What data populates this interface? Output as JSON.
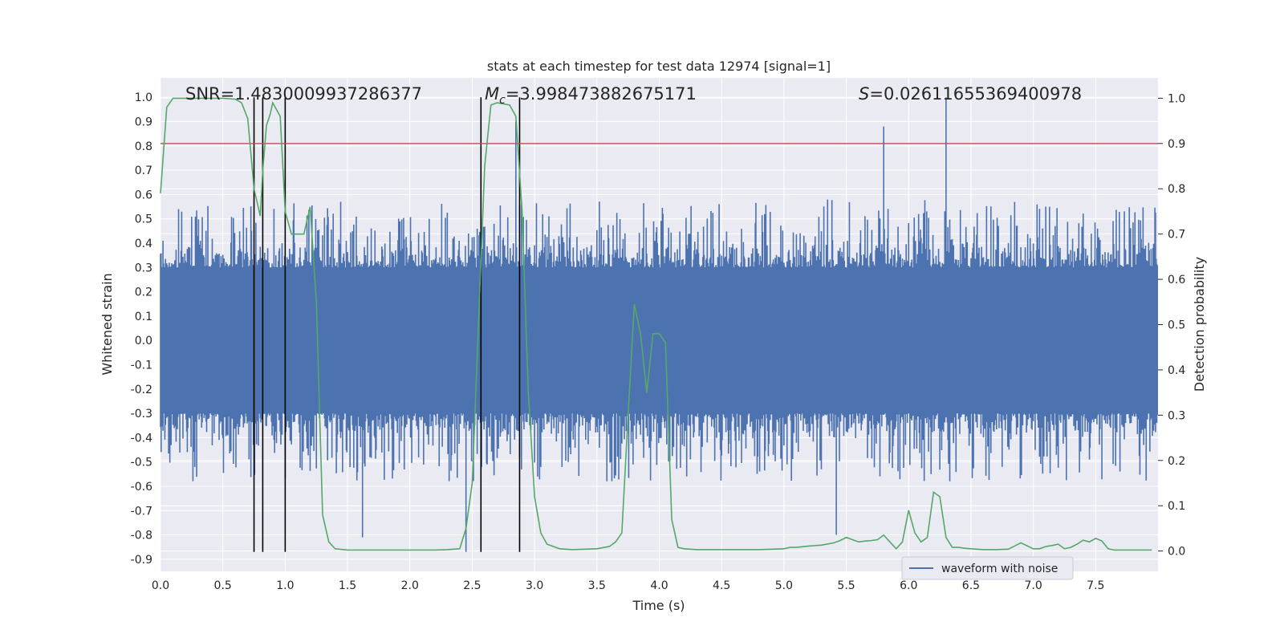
{
  "chart_data": {
    "type": "line",
    "title": "stats at each timestep for test data 12974 [signal=1]",
    "xlabel": "Time (s)",
    "ylabel": "Whitened strain",
    "y2label": "Detection probability",
    "xlim": [
      0.0,
      8.0
    ],
    "ylim": [
      -0.95,
      1.08
    ],
    "y2lim": [
      -0.045,
      1.045
    ],
    "x_ticks": [
      "0.0",
      "0.5",
      "1.0",
      "1.5",
      "2.0",
      "2.5",
      "3.0",
      "3.5",
      "4.0",
      "4.5",
      "5.0",
      "5.5",
      "6.0",
      "6.5",
      "7.0",
      "7.5"
    ],
    "y_ticks": [
      "1.0",
      "0.9",
      "0.8",
      "0.7",
      "0.6",
      "0.5",
      "0.4",
      "0.3",
      "0.2",
      "0.1",
      "0.0",
      "-0.1",
      "-0.2",
      "-0.3",
      "-0.4",
      "-0.5",
      "-0.6",
      "-0.7",
      "-0.8",
      "-0.9"
    ],
    "y2_ticks": [
      "1.0",
      "0.9",
      "0.8",
      "0.7",
      "0.6",
      "0.5",
      "0.4",
      "0.3",
      "0.2",
      "0.1",
      "0.0"
    ],
    "annotations": {
      "snr": "SNR=1.4830009937286377",
      "mc_symbol": "M",
      "mc_sub": "c",
      "mc_value": "=3.998473882675171",
      "s_symbol": "S",
      "s_value": "=0.02611655369400978"
    },
    "threshold": {
      "value": 0.9,
      "axis": "right",
      "color": "#c44e52"
    },
    "vertical_lines": [
      0.75,
      0.82,
      1.0,
      2.57,
      2.88
    ],
    "vertical_line_range": [
      -0.87,
      1.0
    ],
    "series": [
      {
        "name": "waveform with noise",
        "axis": "left",
        "color": "#4c72b0",
        "style": "noise",
        "band": [
          -0.3,
          0.3
        ],
        "spike_max": 0.5,
        "peaks": [
          [
            2.85,
            0.9
          ],
          [
            5.8,
            0.88
          ],
          [
            6.3,
            1.0
          ],
          [
            2.45,
            -0.87
          ],
          [
            1.62,
            -0.81
          ],
          [
            5.42,
            -0.8
          ]
        ]
      },
      {
        "name": "detection probability",
        "axis": "right",
        "color": "#55a868",
        "x": [
          0.0,
          0.05,
          0.1,
          0.2,
          0.3,
          0.4,
          0.5,
          0.6,
          0.65,
          0.7,
          0.75,
          0.8,
          0.82,
          0.85,
          0.88,
          0.9,
          0.93,
          0.96,
          1.0,
          1.05,
          1.1,
          1.15,
          1.2,
          1.25,
          1.3,
          1.35,
          1.4,
          1.5,
          1.6,
          1.8,
          2.0,
          2.2,
          2.3,
          2.4,
          2.45,
          2.5,
          2.55,
          2.6,
          2.65,
          2.7,
          2.8,
          2.85,
          2.9,
          2.95,
          3.0,
          3.05,
          3.1,
          3.2,
          3.3,
          3.5,
          3.6,
          3.65,
          3.7,
          3.75,
          3.8,
          3.85,
          3.9,
          3.95,
          4.0,
          4.05,
          4.1,
          4.15,
          4.2,
          4.3,
          4.4,
          4.6,
          4.8,
          5.0,
          5.05,
          5.1,
          5.2,
          5.3,
          5.4,
          5.45,
          5.5,
          5.55,
          5.6,
          5.65,
          5.7,
          5.75,
          5.8,
          5.85,
          5.9,
          5.95,
          6.0,
          6.05,
          6.1,
          6.15,
          6.2,
          6.25,
          6.3,
          6.35,
          6.4,
          6.45,
          6.5,
          6.6,
          6.7,
          6.8,
          6.9,
          7.0,
          7.05,
          7.1,
          7.15,
          7.2,
          7.25,
          7.3,
          7.35,
          7.4,
          7.45,
          7.5,
          7.55,
          7.6,
          7.65,
          7.7,
          7.75,
          7.8,
          7.85,
          7.9,
          7.95
        ],
        "values": [
          0.79,
          0.98,
          1.0,
          1.0,
          1.0,
          1.0,
          1.0,
          0.998,
          0.99,
          0.955,
          0.8,
          0.74,
          0.84,
          0.94,
          0.965,
          0.99,
          0.975,
          0.96,
          0.75,
          0.7,
          0.7,
          0.7,
          0.76,
          0.55,
          0.08,
          0.02,
          0.005,
          0.002,
          0.002,
          0.002,
          0.002,
          0.002,
          0.003,
          0.005,
          0.05,
          0.15,
          0.5,
          0.85,
          0.985,
          0.99,
          0.985,
          0.96,
          0.75,
          0.35,
          0.12,
          0.04,
          0.015,
          0.005,
          0.003,
          0.005,
          0.01,
          0.02,
          0.04,
          0.3,
          0.545,
          0.48,
          0.35,
          0.48,
          0.48,
          0.46,
          0.07,
          0.008,
          0.005,
          0.003,
          0.003,
          0.003,
          0.003,
          0.005,
          0.008,
          0.008,
          0.011,
          0.013,
          0.018,
          0.023,
          0.03,
          0.025,
          0.02,
          0.022,
          0.023,
          0.025,
          0.035,
          0.02,
          0.005,
          0.02,
          0.09,
          0.04,
          0.02,
          0.03,
          0.13,
          0.12,
          0.03,
          0.008,
          0.008,
          0.006,
          0.005,
          0.003,
          0.003,
          0.004,
          0.018,
          0.005,
          0.005,
          0.01,
          0.012,
          0.015,
          0.005,
          0.008,
          0.015,
          0.024,
          0.02,
          0.028,
          0.022,
          0.005,
          0.002,
          0.002,
          0.002,
          0.002,
          0.002,
          0.002,
          0.002
        ]
      }
    ],
    "legend": {
      "label": "waveform with noise",
      "location": "lower-right"
    }
  }
}
